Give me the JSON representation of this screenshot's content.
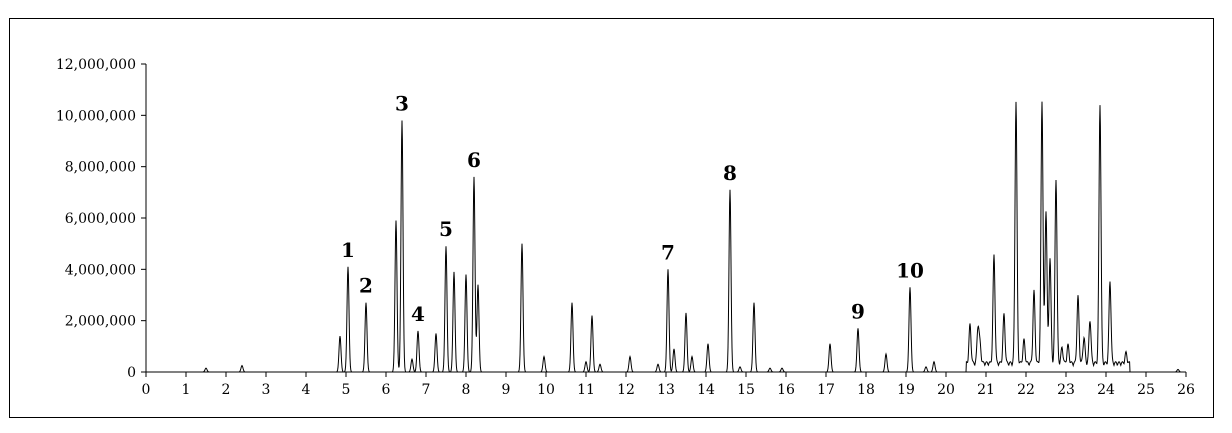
{
  "chart_data": {
    "type": "line",
    "title": "",
    "xlabel": "",
    "ylabel": "",
    "xlim": [
      0,
      26
    ],
    "ylim": [
      0,
      12000000
    ],
    "grid": false,
    "legend": "none",
    "line_color": "#000000",
    "x_ticks": [
      "0",
      "1",
      "2",
      "3",
      "4",
      "5",
      "6",
      "7",
      "8",
      "9",
      "10",
      "11",
      "12",
      "13",
      "14",
      "15",
      "16",
      "17",
      "18",
      "19",
      "20",
      "21",
      "22",
      "23",
      "24",
      "25",
      "26"
    ],
    "y_ticks": [
      {
        "value": 0,
        "label": "0"
      },
      {
        "value": 2000000,
        "label": "2,000,000"
      },
      {
        "value": 4000000,
        "label": "4,000,000"
      },
      {
        "value": 6000000,
        "label": "6,000,000"
      },
      {
        "value": 8000000,
        "label": "8,000,000"
      },
      {
        "value": 10000000,
        "label": "10,000,000"
      },
      {
        "value": 12000000,
        "label": "12,000,000"
      }
    ],
    "peaks": [
      [
        1.5,
        150000
      ],
      [
        2.4,
        250000
      ],
      [
        4.85,
        1400000
      ],
      [
        5.05,
        4100000
      ],
      [
        5.5,
        2700000
      ],
      [
        6.25,
        5900000
      ],
      [
        6.4,
        9800000
      ],
      [
        6.65,
        500000
      ],
      [
        6.8,
        1600000
      ],
      [
        7.25,
        1500000
      ],
      [
        7.5,
        4900000
      ],
      [
        7.7,
        3900000
      ],
      [
        8.0,
        3800000
      ],
      [
        8.2,
        7600000
      ],
      [
        8.3,
        3400000
      ],
      [
        9.4,
        5000000
      ],
      [
        9.95,
        600000
      ],
      [
        10.65,
        2700000
      ],
      [
        11.0,
        400000
      ],
      [
        11.15,
        2200000
      ],
      [
        11.35,
        300000
      ],
      [
        12.1,
        600000
      ],
      [
        12.8,
        300000
      ],
      [
        13.05,
        4000000
      ],
      [
        13.2,
        900000
      ],
      [
        13.5,
        2300000
      ],
      [
        13.65,
        600000
      ],
      [
        14.05,
        1100000
      ],
      [
        14.6,
        7100000
      ],
      [
        14.85,
        200000
      ],
      [
        15.2,
        2700000
      ],
      [
        15.6,
        150000
      ],
      [
        15.9,
        150000
      ],
      [
        17.1,
        1100000
      ],
      [
        17.8,
        1700000
      ],
      [
        18.5,
        700000
      ],
      [
        19.1,
        3300000
      ],
      [
        19.5,
        200000
      ],
      [
        19.7,
        400000
      ],
      [
        20.6,
        1500000
      ],
      [
        20.8,
        1400000
      ],
      [
        20.85,
        700000
      ],
      [
        21.2,
        4200000
      ],
      [
        21.45,
        1900000
      ],
      [
        21.75,
        10200000
      ],
      [
        21.95,
        900000
      ],
      [
        22.2,
        2800000
      ],
      [
        22.4,
        10200000
      ],
      [
        22.5,
        6000000
      ],
      [
        22.6,
        4100000
      ],
      [
        22.75,
        7200000
      ],
      [
        22.9,
        600000
      ],
      [
        23.05,
        700000
      ],
      [
        23.3,
        2600000
      ],
      [
        23.45,
        1000000
      ],
      [
        23.6,
        1700000
      ],
      [
        23.85,
        10100000
      ],
      [
        24.1,
        3200000
      ],
      [
        24.5,
        400000
      ],
      [
        25.8,
        100000
      ]
    ],
    "annotations": [
      {
        "label": "1",
        "x": 5.05,
        "y": 4100000
      },
      {
        "label": "2",
        "x": 5.5,
        "y": 2700000
      },
      {
        "label": "3",
        "x": 6.4,
        "y": 9800000
      },
      {
        "label": "4",
        "x": 6.8,
        "y": 1600000
      },
      {
        "label": "5",
        "x": 7.5,
        "y": 4900000
      },
      {
        "label": "6",
        "x": 8.2,
        "y": 7600000
      },
      {
        "label": "7",
        "x": 13.05,
        "y": 4000000
      },
      {
        "label": "8",
        "x": 14.6,
        "y": 7100000
      },
      {
        "label": "9",
        "x": 17.8,
        "y": 1700000
      },
      {
        "label": "10",
        "x": 19.1,
        "y": 3300000
      }
    ]
  }
}
